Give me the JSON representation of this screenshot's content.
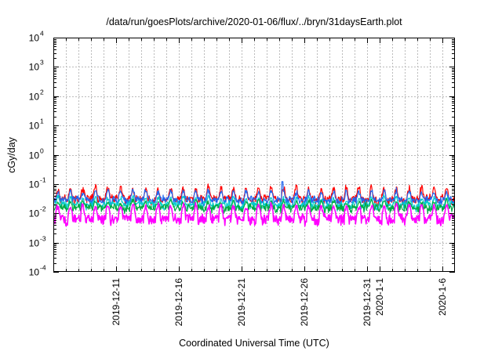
{
  "chart_data": {
    "type": "line",
    "title": "/data/run/goesPlots/archive/2020-01-06/flux/../bryn/31daysEarth.plot",
    "xlabel": "Coordinated Universal Time (UTC)",
    "ylabel": "cGy/day",
    "yscale": "log",
    "ylim": [
      0.0001,
      10000
    ],
    "y_ticks": [
      {
        "base": "10",
        "exp": "-4",
        "value": 0.0001
      },
      {
        "base": "10",
        "exp": "-3",
        "value": 0.001
      },
      {
        "base": "10",
        "exp": "-2",
        "value": 0.01
      },
      {
        "base": "10",
        "exp": "-1",
        "value": 0.1
      },
      {
        "base": "10",
        "exp": "0",
        "value": 1
      },
      {
        "base": "10",
        "exp": "1",
        "value": 10
      },
      {
        "base": "10",
        "exp": "2",
        "value": 100
      },
      {
        "base": "10",
        "exp": "3",
        "value": 1000
      },
      {
        "base": "10",
        "exp": "4",
        "value": 10000
      }
    ],
    "xlim": [
      "2019-12-06",
      "2020-01-07"
    ],
    "x_ticks": [
      {
        "date": "2019-12-11",
        "label": "2019-12-11"
      },
      {
        "date": "2019-12-16",
        "label": "2019-12-16"
      },
      {
        "date": "2019-12-21",
        "label": "2019-12-21"
      },
      {
        "date": "2019-12-26",
        "label": "2019-12-26"
      },
      {
        "date": "2019-12-31",
        "label": "2019-12-31"
      },
      {
        "date": "2020-01-01",
        "label": "2020-1-1"
      },
      {
        "date": "2020-01-06",
        "label": "2020-1-6"
      }
    ],
    "grid": true,
    "series": [
      {
        "color": "#ff0000",
        "base": 0.032,
        "amp": 2.3,
        "low": 0.7
      },
      {
        "color": "#2266ee",
        "base": 0.028,
        "amp": 2.0,
        "low": 0.75
      },
      {
        "color": "#00cccc",
        "base": 0.02,
        "amp": 1.7,
        "low": 0.7
      },
      {
        "color": "#00aa44",
        "base": 0.016,
        "amp": 1.6,
        "low": 0.7
      },
      {
        "color": "#ff00ff",
        "base": 0.009,
        "amp": 2.0,
        "low": 0.45
      }
    ],
    "series_note": "Each series is an irregular daily-periodic trace (~1-2 samples per hour) whose values stay between roughly 0.003 and 0.12 cGy/day; listed typical level, peak factor and trough factor summarize it.",
    "peak_value": 0.12,
    "peak_date": "2019-12-24"
  }
}
